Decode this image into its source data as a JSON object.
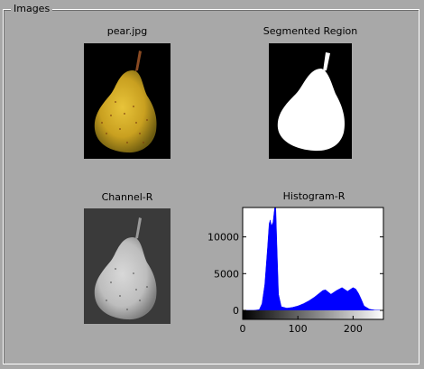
{
  "group": {
    "title": "Images"
  },
  "panels": {
    "original": {
      "title": "pear.jpg"
    },
    "segmented": {
      "title": "Segmented Region"
    },
    "channel": {
      "title": "Channel-R"
    },
    "histogram": {
      "title": "Histogram-R"
    }
  },
  "chart_data": {
    "type": "area",
    "title": "Histogram-R",
    "xlabel": "",
    "ylabel": "",
    "xlim": [
      0,
      255
    ],
    "ylim": [
      0,
      14000
    ],
    "x_ticks": [
      0,
      100,
      200
    ],
    "y_ticks": [
      0,
      5000,
      10000
    ],
    "x": [
      0,
      20,
      30,
      35,
      40,
      45,
      48,
      50,
      52,
      55,
      58,
      60,
      62,
      65,
      70,
      80,
      90,
      100,
      110,
      120,
      130,
      140,
      145,
      150,
      160,
      170,
      180,
      190,
      200,
      205,
      210,
      215,
      220,
      230,
      240,
      255
    ],
    "values": [
      0,
      0,
      100,
      900,
      3500,
      8500,
      11800,
      12300,
      11500,
      12000,
      14000,
      14000,
      9000,
      2200,
      500,
      300,
      400,
      600,
      900,
      1300,
      1800,
      2400,
      2700,
      2800,
      2200,
      2700,
      3100,
      2600,
      3100,
      2900,
      2300,
      1500,
      600,
      150,
      30,
      0
    ],
    "series_color": "#0000ff",
    "colorbar": "grayscale 0-255"
  }
}
